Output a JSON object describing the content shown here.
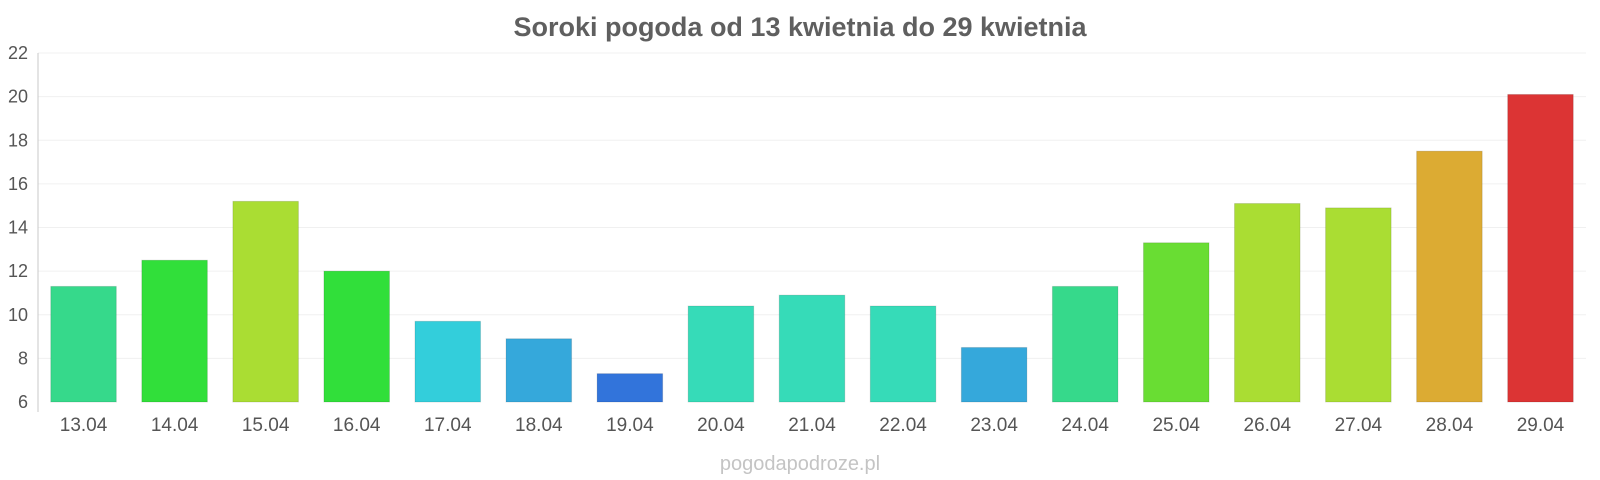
{
  "chart_data": {
    "type": "bar",
    "title": "Soroki pogoda od 13 kwietnia do 29 kwietnia",
    "xlabel": "",
    "ylabel": "",
    "ylim": [
      6,
      22
    ],
    "yticks": [
      6,
      8,
      10,
      12,
      14,
      16,
      18,
      20,
      22
    ],
    "grid": true,
    "categories": [
      "13.04",
      "14.04",
      "15.04",
      "16.04",
      "17.04",
      "18.04",
      "19.04",
      "20.04",
      "21.04",
      "22.04",
      "23.04",
      "24.04",
      "25.04",
      "26.04",
      "27.04",
      "28.04",
      "29.04"
    ],
    "values": [
      11.3,
      12.5,
      15.2,
      12.0,
      9.7,
      8.9,
      7.3,
      10.4,
      10.9,
      10.4,
      8.5,
      11.3,
      13.3,
      15.1,
      14.9,
      17.5,
      20.1
    ],
    "colors": [
      "#36d98b",
      "#31df3a",
      "#aadd33",
      "#31df3a",
      "#33cedb",
      "#35a8db",
      "#3274db",
      "#36dbb8",
      "#36dbb8",
      "#36dbb8",
      "#35a8db",
      "#36d98b",
      "#69dd33",
      "#aadd33",
      "#aadd33",
      "#dcab33",
      "#dc3434"
    ]
  },
  "watermark": "pogodapodroze.pl"
}
